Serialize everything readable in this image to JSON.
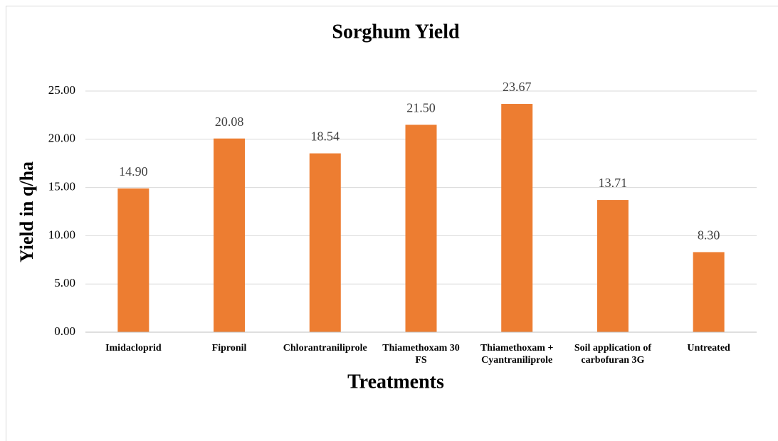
{
  "chart_data": {
    "type": "bar",
    "title": "Sorghum Yield",
    "x_label": "Treatments",
    "y_label": "Yield in q/ha",
    "categories": [
      "Imidacloprid",
      "Fipronil",
      "Chlorantraniliprole",
      "Thiamethoxam 30 FS",
      "Thiamethoxam + Cyantraniliprole",
      "Soil application of carbofuran 3G",
      "Untreated"
    ],
    "values": [
      14.9,
      20.08,
      18.54,
      21.5,
      23.67,
      13.71,
      8.3
    ],
    "value_labels": [
      "14.90",
      "20.08",
      "18.54",
      "21.50",
      "23.67",
      "13.71",
      "8.30"
    ],
    "color": "#ed7d31",
    "ylim": [
      0,
      25
    ],
    "yticks": [
      {
        "value": 0,
        "label": "0.00"
      },
      {
        "value": 5,
        "label": "5.00"
      },
      {
        "value": 10,
        "label": "10.00"
      },
      {
        "value": 15,
        "label": "15.00"
      },
      {
        "value": 20,
        "label": "20.00"
      },
      {
        "value": 25,
        "label": "25.00"
      }
    ],
    "grid": true
  }
}
